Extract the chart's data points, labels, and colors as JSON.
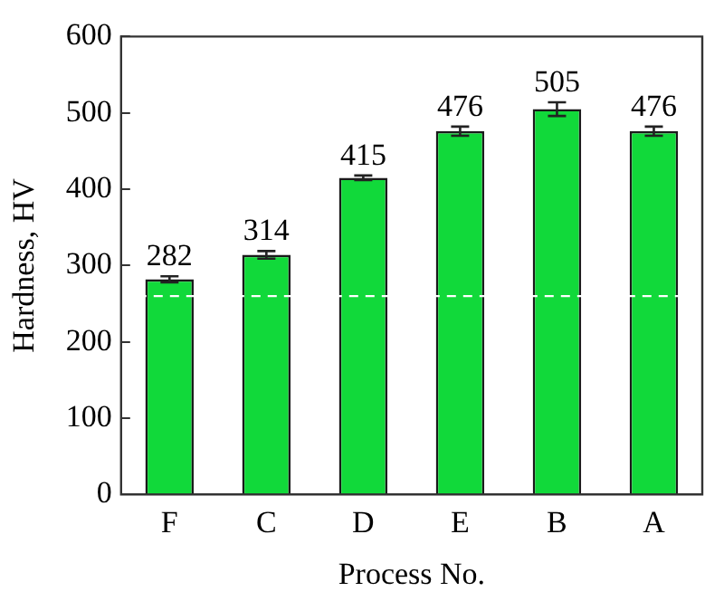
{
  "chart_data": {
    "type": "bar",
    "xlabel": "Process No.",
    "ylabel": "Hardness, HV",
    "categories": [
      "F",
      "C",
      "D",
      "E",
      "B",
      "A"
    ],
    "values": [
      282,
      314,
      415,
      476,
      505,
      476
    ],
    "errors": [
      4,
      5,
      3,
      6,
      9,
      6
    ],
    "color": "#11d93a",
    "ylim": [
      0,
      600
    ],
    "yticks": [
      0,
      100,
      200,
      300,
      400,
      500,
      600
    ],
    "ref_lines": [
      {
        "axis": "y",
        "value": 260,
        "color": "#ffffff",
        "line_style": "dashed"
      }
    ],
    "data_labels": true,
    "grid": false,
    "legend": false
  }
}
